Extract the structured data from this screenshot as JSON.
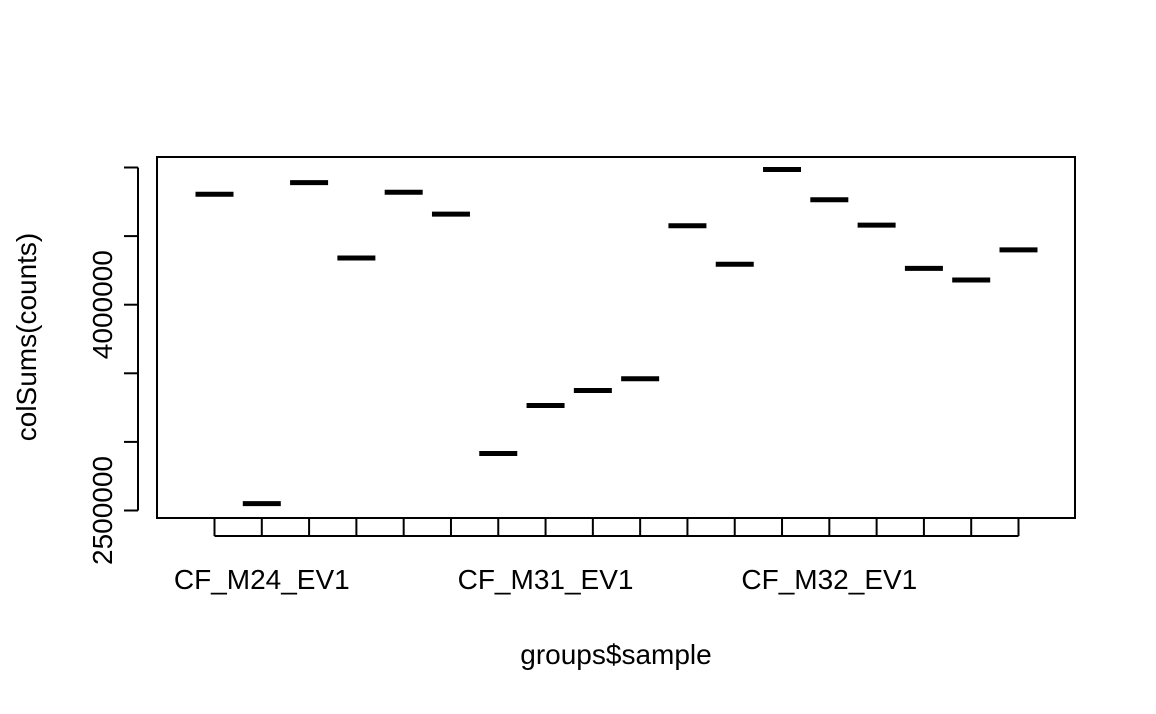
{
  "chart_data": {
    "type": "scatter",
    "marker": "horizontal-bar",
    "xlabel": "groups$sample",
    "ylabel": "colSums(counts)",
    "x_tick_labels": [
      {
        "index": 2,
        "label": "CF_M24_EV1"
      },
      {
        "index": 8,
        "label": "CF_M31_EV1"
      },
      {
        "index": 14,
        "label": "CF_M32_EV1"
      }
    ],
    "x_tick_count": 18,
    "y_ticks": [
      2500000,
      3000000,
      3500000,
      4000000,
      4500000,
      5000000
    ],
    "y_tick_labels": [
      {
        "value": 2500000,
        "label": "2500000"
      },
      {
        "value": 4000000,
        "label": "4000000"
      }
    ],
    "ylim": [
      2460000,
      5040000
    ],
    "xlim": [
      0.5,
      19.5
    ],
    "series": [
      {
        "name": "samples",
        "x": [
          1,
          2,
          3,
          4,
          5,
          6,
          7,
          8,
          9,
          10,
          11,
          12,
          13,
          14,
          15,
          16,
          17,
          18
        ],
        "values": [
          4805000,
          2550000,
          4890000,
          4340000,
          4820000,
          4660000,
          2915000,
          3265000,
          3375000,
          3460000,
          4575000,
          4295000,
          4985000,
          4765000,
          4580000,
          4265000,
          4180000,
          4400000
        ]
      }
    ]
  }
}
